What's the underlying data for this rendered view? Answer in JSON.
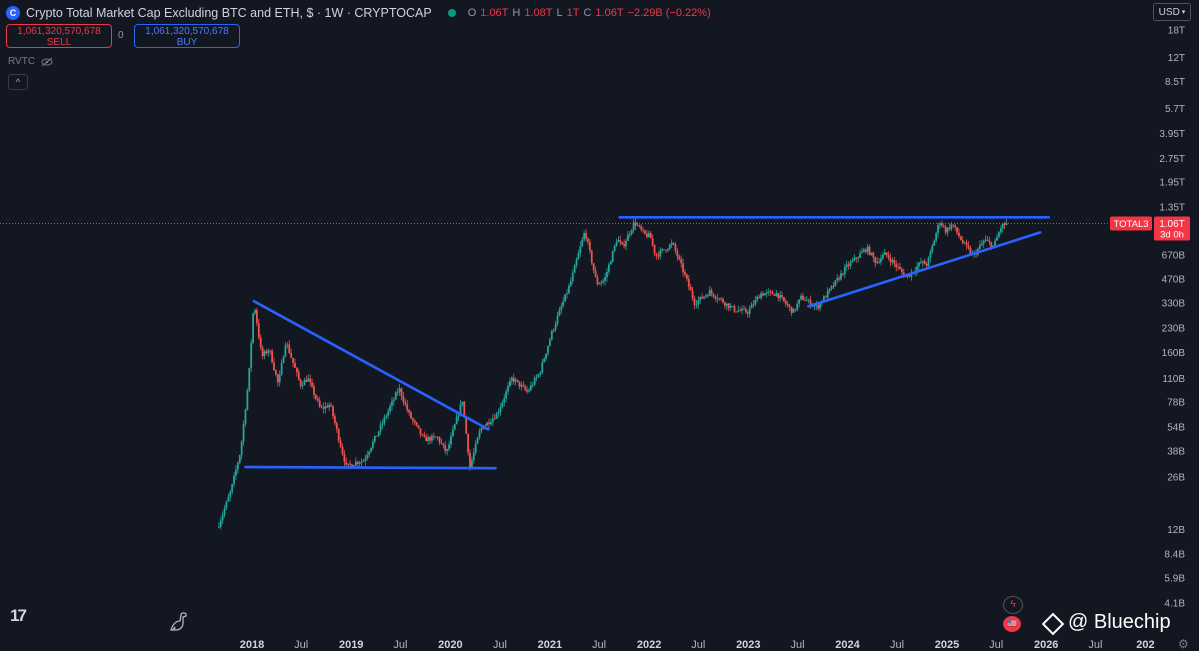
{
  "header": {
    "logo_glyph": "C",
    "title": "Crypto Total Market Cap Excluding BTC and ETH, $ · 1W · CRYPTOCAP",
    "ohlc": [
      {
        "key": "O",
        "value": "1.06T"
      },
      {
        "key": "H",
        "value": "1.08T"
      },
      {
        "key": "L",
        "value": "1T"
      },
      {
        "key": "C",
        "value": "1.06T"
      }
    ],
    "change": "−2.29B (−0.22%)",
    "status_color": "#089981"
  },
  "trade": {
    "sell_price": "1,061,320,570,678",
    "sell_label": "SELL",
    "spread": "0",
    "buy_price": "1,061,320,570,678",
    "buy_label": "BUY"
  },
  "indicator": {
    "label": "RVTC",
    "icon": "eye-off-icon"
  },
  "collapse": {
    "icon": "chevron-up-icon",
    "glyph": "^"
  },
  "currency": {
    "label": "USD",
    "icon": "chevron-down-icon"
  },
  "price_tag": {
    "symbol": "TOTAL3",
    "price": "1.06T",
    "countdown": "3d 0h",
    "color": "#f23645"
  },
  "branding": {
    "tv_logo": "17",
    "watermark": "@ Bluechip"
  },
  "colors": {
    "background": "#131722",
    "up": "#26a69a",
    "down": "#ef5350",
    "trendline": "#2962ff"
  },
  "chart_data": {
    "type": "candlestick",
    "interval": "1W",
    "y_scale": "log",
    "y_ticks": [
      "18T",
      "12T",
      "8.5T",
      "5.7T",
      "3.95T",
      "2.75T",
      "1.95T",
      "1.35T",
      "670B",
      "470B",
      "330B",
      "230B",
      "160B",
      "110B",
      "78B",
      "54B",
      "38B",
      "26B",
      "12B",
      "8.4B",
      "5.9B",
      "4.1B"
    ],
    "x_ticks": [
      {
        "label": "2018",
        "year": true
      },
      {
        "label": "Jul",
        "year": false
      },
      {
        "label": "2019",
        "year": true
      },
      {
        "label": "Jul",
        "year": false
      },
      {
        "label": "2020",
        "year": true
      },
      {
        "label": "Jul",
        "year": false
      },
      {
        "label": "2021",
        "year": true
      },
      {
        "label": "Jul",
        "year": false
      },
      {
        "label": "2022",
        "year": true
      },
      {
        "label": "Jul",
        "year": false
      },
      {
        "label": "2023",
        "year": true
      },
      {
        "label": "Jul",
        "year": false
      },
      {
        "label": "2024",
        "year": true
      },
      {
        "label": "Jul",
        "year": false
      },
      {
        "label": "2025",
        "year": true
      },
      {
        "label": "Jul",
        "year": false
      },
      {
        "label": "2026",
        "year": true
      },
      {
        "label": "Jul",
        "year": false
      },
      {
        "label": "202",
        "year": true
      }
    ],
    "last_price_line": 1060000000000.0,
    "series_anchors": [
      [
        "2017-09-01",
        13000000000.0
      ],
      [
        "2017-10-15",
        21000000000.0
      ],
      [
        "2017-11-20",
        38000000000.0
      ],
      [
        "2017-12-20",
        110000000000.0
      ],
      [
        "2018-01-08",
        340000000000.0
      ],
      [
        "2018-02-06",
        150000000000.0
      ],
      [
        "2018-03-05",
        170000000000.0
      ],
      [
        "2018-04-08",
        100000000000.0
      ],
      [
        "2018-05-05",
        190000000000.0
      ],
      [
        "2018-06-28",
        100000000000.0
      ],
      [
        "2018-07-25",
        110000000000.0
      ],
      [
        "2018-09-10",
        70000000000.0
      ],
      [
        "2018-10-15",
        75000000000.0
      ],
      [
        "2018-12-14",
        30000000000.0
      ],
      [
        "2019-01-15",
        32000000000.0
      ],
      [
        "2019-02-15",
        33000000000.0
      ],
      [
        "2019-04-05",
        48000000000.0
      ],
      [
        "2019-06-26",
        95000000000.0
      ],
      [
        "2019-08-01",
        65000000000.0
      ],
      [
        "2019-09-25",
        45000000000.0
      ],
      [
        "2019-11-15",
        46000000000.0
      ],
      [
        "2019-12-18",
        37000000000.0
      ],
      [
        "2020-02-14",
        80000000000.0
      ],
      [
        "2020-03-13",
        30000000000.0
      ],
      [
        "2020-04-20",
        52000000000.0
      ],
      [
        "2020-06-20",
        65000000000.0
      ],
      [
        "2020-08-15",
        110000000000.0
      ],
      [
        "2020-10-10",
        90000000000.0
      ],
      [
        "2020-11-25",
        120000000000.0
      ],
      [
        "2021-01-10",
        220000000000.0
      ],
      [
        "2021-02-20",
        340000000000.0
      ],
      [
        "2021-03-15",
        430000000000.0
      ],
      [
        "2021-05-10",
        950000000000.0
      ],
      [
        "2021-06-22",
        440000000000.0
      ],
      [
        "2021-07-20",
        460000000000.0
      ],
      [
        "2021-09-05",
        850000000000.0
      ],
      [
        "2021-09-25",
        750000000000.0
      ],
      [
        "2021-11-08",
        1080000000000.0
      ],
      [
        "2021-12-15",
        900000000000.0
      ],
      [
        "2022-01-05",
        880000000000.0
      ],
      [
        "2022-01-25",
        660000000000.0
      ],
      [
        "2022-03-28",
        790000000000.0
      ],
      [
        "2022-05-12",
        500000000000.0
      ],
      [
        "2022-06-18",
        330000000000.0
      ],
      [
        "2022-08-12",
        390000000000.0
      ],
      [
        "2022-11-10",
        300000000000.0
      ],
      [
        "2022-12-30",
        290000000000.0
      ],
      [
        "2023-02-15",
        380000000000.0
      ],
      [
        "2023-04-15",
        380000000000.0
      ],
      [
        "2023-06-15",
        290000000000.0
      ],
      [
        "2023-07-15",
        360000000000.0
      ],
      [
        "2023-09-11",
        310000000000.0
      ],
      [
        "2023-11-15",
        440000000000.0
      ],
      [
        "2023-12-28",
        560000000000.0
      ],
      [
        "2024-03-12",
        740000000000.0
      ],
      [
        "2024-04-15",
        600000000000.0
      ],
      [
        "2024-05-20",
        680000000000.0
      ],
      [
        "2024-08-05",
        480000000000.0
      ],
      [
        "2024-09-28",
        600000000000.0
      ],
      [
        "2024-10-20",
        580000000000.0
      ],
      [
        "2024-12-05",
        1100000000000.0
      ],
      [
        "2024-12-28",
        950000000000.0
      ],
      [
        "2025-01-20",
        1050000000000.0
      ],
      [
        "2025-02-28",
        800000000000.0
      ],
      [
        "2025-04-08",
        660000000000.0
      ],
      [
        "2025-05-20",
        830000000000.0
      ],
      [
        "2025-06-22",
        760000000000.0
      ],
      [
        "2025-07-20",
        1020000000000.0
      ],
      [
        "2025-08-10",
        1060000000000.0
      ]
    ],
    "trendlines": [
      {
        "name": "descending-trendline",
        "from": [
          "2018-01-08",
          340000000000.0
        ],
        "to": [
          "2020-05-20",
          52000000000.0
        ]
      },
      {
        "name": "support-line",
        "from": [
          "2017-12-08",
          30000000000.0
        ],
        "to": [
          "2020-06-15",
          29500000000.0
        ]
      },
      {
        "name": "resistance-line",
        "from": [
          "2021-09-15",
          1160000000000.0
        ],
        "to": [
          "2026-01-10",
          1160000000000.0
        ]
      },
      {
        "name": "rising-trendline",
        "from": [
          "2023-08-10",
          315000000000.0
        ],
        "to": [
          "2025-12-10",
          930000000000.0
        ]
      }
    ]
  }
}
